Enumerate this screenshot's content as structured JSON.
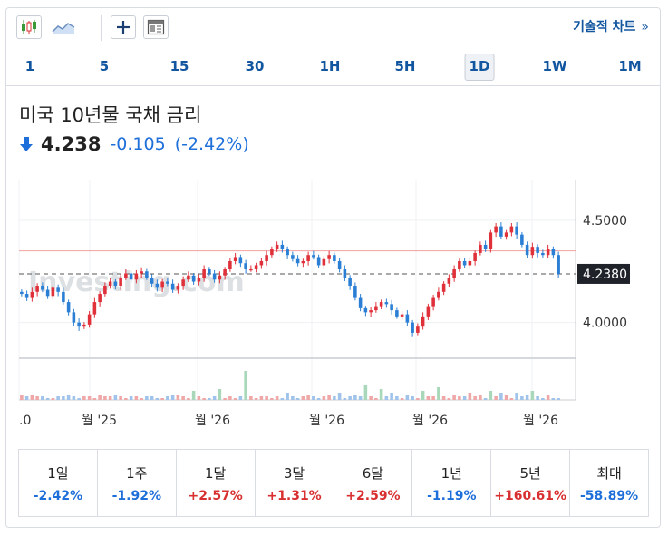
{
  "toolbar": {
    "tech_chart_label": "기술적 차트",
    "tech_chart_arrow": "»"
  },
  "ranges": [
    {
      "label": "1"
    },
    {
      "label": "5"
    },
    {
      "label": "15"
    },
    {
      "label": "30"
    },
    {
      "label": "1H"
    },
    {
      "label": "5H"
    },
    {
      "label": "1D",
      "active": true
    },
    {
      "label": "1W"
    },
    {
      "label": "1M"
    }
  ],
  "instrument": {
    "title": "미국 10년물 국채 금리",
    "price": "4.238",
    "change": "-0.105",
    "change_pct": "(-2.42%)"
  },
  "colors": {
    "up": "#e0303a",
    "down": "#2a7fd5",
    "volume": "#a8d8b9",
    "link": "#1256a0",
    "negative_text": "#1e6fd9",
    "positive_text": "#d83030"
  },
  "chart_data": {
    "type": "candlestick",
    "y_ticks": [
      "4.5000",
      "4.0000"
    ],
    "x_ticks": [
      ".0",
      "월 '25",
      "월 '26",
      "월 '26",
      "월 '26",
      "월 '26"
    ],
    "last_price_label": "4.2380",
    "last_price": 4.238,
    "previous_close": 4.343,
    "ylim": [
      3.83,
      4.65
    ],
    "watermark": "Investing.com",
    "closes": [
      4.14,
      4.12,
      4.15,
      4.18,
      4.16,
      4.13,
      4.17,
      4.15,
      4.1,
      4.05,
      4.0,
      3.98,
      3.99,
      4.04,
      4.1,
      4.14,
      4.18,
      4.2,
      4.18,
      4.22,
      4.24,
      4.21,
      4.24,
      4.25,
      4.22,
      4.19,
      4.17,
      4.2,
      4.19,
      4.16,
      4.18,
      4.21,
      4.23,
      4.2,
      4.22,
      4.26,
      4.24,
      4.21,
      4.23,
      4.26,
      4.3,
      4.32,
      4.29,
      4.26,
      4.26,
      4.28,
      4.3,
      4.33,
      4.36,
      4.38,
      4.36,
      4.33,
      4.31,
      4.29,
      4.3,
      4.33,
      4.32,
      4.28,
      4.31,
      4.33,
      4.3,
      4.26,
      4.22,
      4.18,
      4.12,
      4.07,
      4.05,
      4.06,
      4.08,
      4.1,
      4.09,
      4.06,
      4.03,
      4.04,
      4.0,
      3.95,
      3.98,
      4.03,
      4.08,
      4.12,
      4.15,
      4.19,
      4.22,
      4.26,
      4.3,
      4.28,
      4.3,
      4.34,
      4.38,
      4.36,
      4.44,
      4.47,
      4.42,
      4.44,
      4.47,
      4.43,
      4.38,
      4.33,
      4.37,
      4.34,
      4.33,
      4.36,
      4.33,
      4.238
    ],
    "volumes": [
      3,
      2,
      3,
      2,
      2,
      1,
      1,
      2,
      2,
      3,
      2,
      1,
      2,
      2,
      1,
      3,
      2,
      2,
      3,
      2,
      1,
      2,
      2,
      1,
      2,
      2,
      1,
      1,
      2,
      3,
      3,
      2,
      1,
      5,
      2,
      1,
      1,
      2,
      6,
      1,
      2,
      1,
      2,
      16,
      2,
      1,
      2,
      2,
      1,
      2,
      1,
      4,
      2,
      1,
      2,
      3,
      2,
      1,
      2,
      3,
      2,
      4,
      1,
      2,
      3,
      2,
      8,
      2,
      1,
      6,
      2,
      4,
      2,
      1,
      3,
      2,
      1,
      5,
      2,
      2,
      7,
      2,
      1,
      3,
      2,
      2,
      4,
      2,
      3,
      1,
      5,
      2,
      4,
      3,
      1,
      4,
      2,
      3,
      5,
      2,
      1,
      3,
      1,
      1
    ],
    "resistance_level": 4.35
  },
  "performance": [
    {
      "label": "1일",
      "value": "-2.42%",
      "dir": "neg"
    },
    {
      "label": "1주",
      "value": "-1.92%",
      "dir": "neg"
    },
    {
      "label": "1달",
      "value": "+2.57%",
      "dir": "pos"
    },
    {
      "label": "3달",
      "value": "+1.31%",
      "dir": "pos"
    },
    {
      "label": "6달",
      "value": "+2.59%",
      "dir": "pos"
    },
    {
      "label": "1년",
      "value": "-1.19%",
      "dir": "neg"
    },
    {
      "label": "5년",
      "value": "+160.61%",
      "dir": "pos"
    },
    {
      "label": "최대",
      "value": "-58.89%",
      "dir": "neg"
    }
  ]
}
